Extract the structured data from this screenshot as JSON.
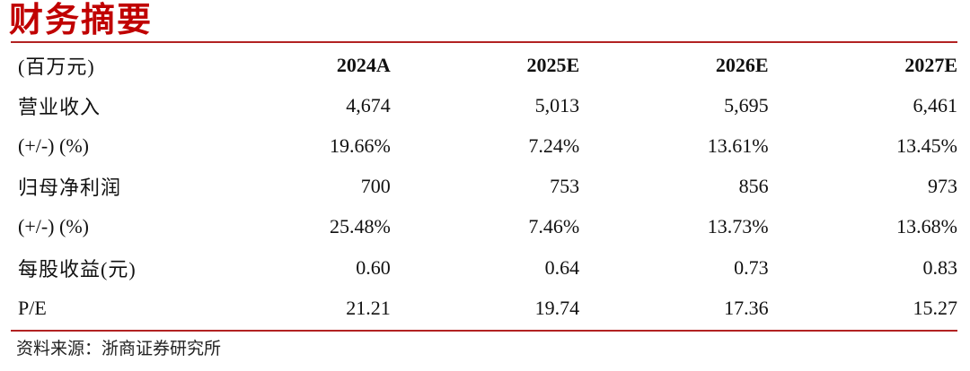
{
  "title": "财务摘要",
  "table": {
    "header": [
      "(百万元)",
      "2024A",
      "2025E",
      "2026E",
      "2027E"
    ],
    "rows": [
      [
        "营业收入",
        "4,674",
        "5,013",
        "5,695",
        "6,461"
      ],
      [
        "(+/-) (%)",
        "19.66%",
        "7.24%",
        "13.61%",
        "13.45%"
      ],
      [
        "归母净利润",
        "700",
        "753",
        "856",
        "973"
      ],
      [
        "(+/-) (%)",
        "25.48%",
        "7.46%",
        "13.73%",
        "13.68%"
      ],
      [
        "每股收益(元)",
        "0.60",
        "0.64",
        "0.73",
        "0.83"
      ],
      [
        "P/E",
        "21.21",
        "19.74",
        "17.36",
        "15.27"
      ]
    ]
  },
  "source": "资料来源：浙商证券研究所",
  "colors": {
    "accent": "#c00000",
    "rule": "#b22222"
  }
}
